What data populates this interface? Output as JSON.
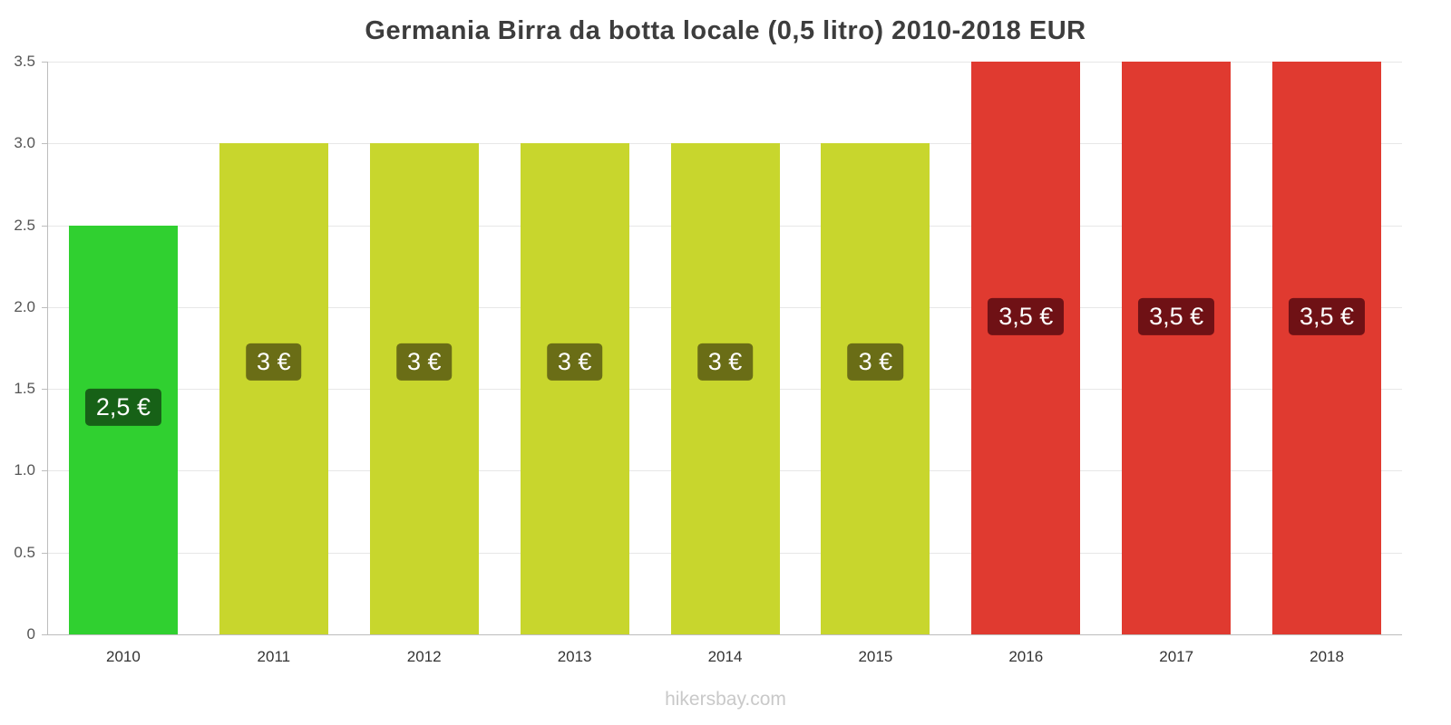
{
  "title": "Germania Birra da botta locale (0,5 litro) 2010-2018 EUR",
  "footer": "hikersbay.com",
  "colors": {
    "title": "#3d3d3d",
    "grid": "#e7e7e7",
    "axis": "#bdbdbd",
    "ytick_text": "#555555",
    "xtick_text": "#333333",
    "watermark": "#c9c9c9",
    "label_text": "#ffffff"
  },
  "chart_data": {
    "type": "bar",
    "title": "Germania Birra da botta locale (0,5 litro) 2010-2018 EUR",
    "xlabel": "",
    "ylabel": "",
    "categories": [
      "2010",
      "2011",
      "2012",
      "2013",
      "2014",
      "2015",
      "2016",
      "2017",
      "2018"
    ],
    "values": [
      2.5,
      3,
      3,
      3,
      3,
      3,
      3.5,
      3.5,
      3.5
    ],
    "bar_labels": [
      "2,5 €",
      "3 €",
      "3 €",
      "3 €",
      "3 €",
      "3 €",
      "3,5 €",
      "3,5 €",
      "3,5 €"
    ],
    "bar_colors": [
      "#30d030",
      "#c8d62d",
      "#c8d62d",
      "#c8d62d",
      "#c8d62d",
      "#c8d62d",
      "#e03a30",
      "#e03a30",
      "#e03a30"
    ],
    "label_bg_colors": [
      "#176117",
      "#6a6d16",
      "#6a6d16",
      "#6a6d16",
      "#6a6d16",
      "#6a6d16",
      "#6f1115",
      "#6f1115",
      "#6f1115"
    ],
    "ylim": [
      0,
      3.5
    ],
    "yticks": [
      0,
      0.5,
      1.0,
      1.5,
      2.0,
      2.5,
      3.0,
      3.5
    ],
    "ytick_labels": [
      "0",
      "0.5",
      "1.0",
      "1.5",
      "2.0",
      "2.5",
      "3.0",
      "3.5"
    ],
    "grid": true,
    "legend": false
  }
}
